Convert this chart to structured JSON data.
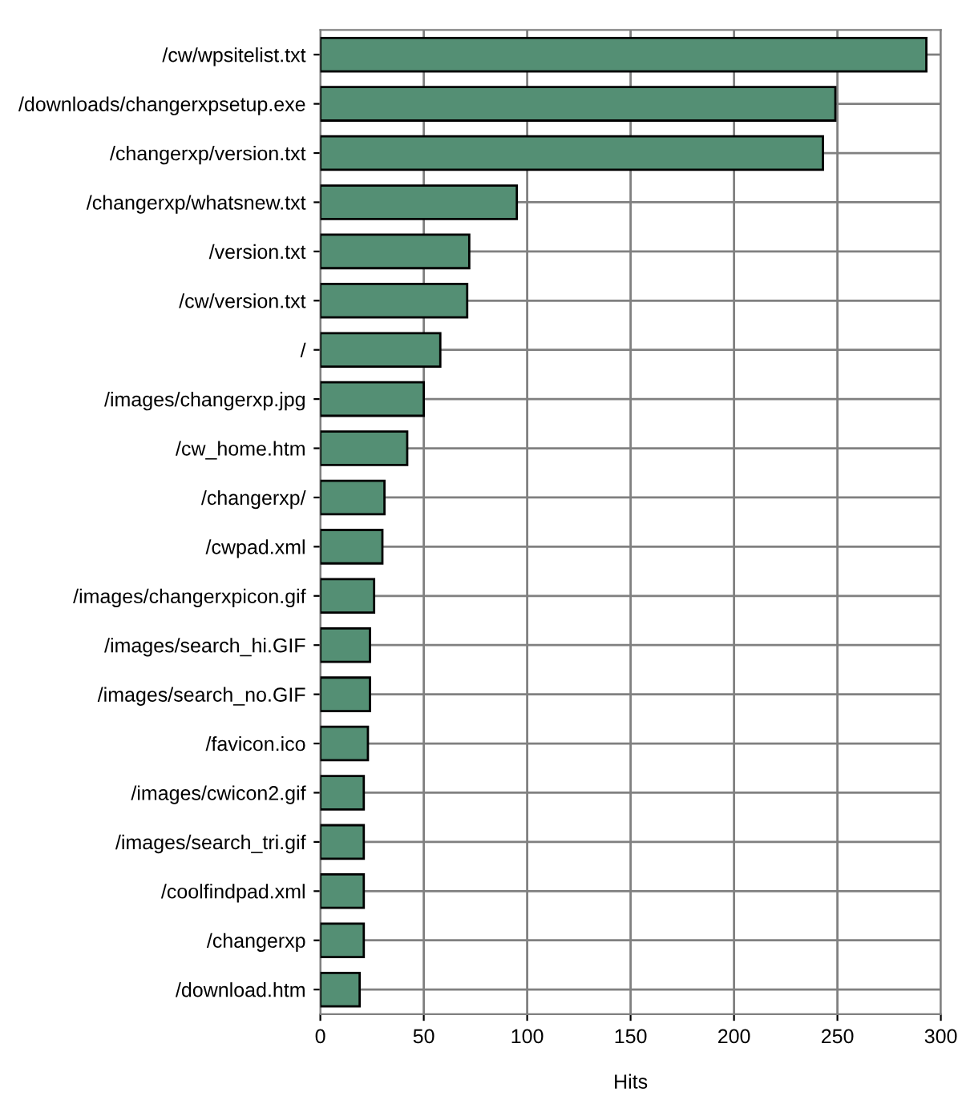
{
  "chart_data": {
    "type": "bar",
    "orientation": "horizontal",
    "xlabel": "Hits",
    "categories": [
      "/cw/wpsitelist.txt",
      "/downloads/changerxpsetup.exe",
      "/changerxp/version.txt",
      "/changerxp/whatsnew.txt",
      "/version.txt",
      "/cw/version.txt",
      "/",
      "/images/changerxp.jpg",
      "/cw_home.htm",
      "/changerxp/",
      "/cwpad.xml",
      "/images/changerxpicon.gif",
      "/images/search_hi.GIF",
      "/images/search_no.GIF",
      "/favicon.ico",
      "/images/cwicon2.gif",
      "/images/search_tri.gif",
      "/coolfindpad.xml",
      "/changerxp",
      "/download.htm"
    ],
    "values": [
      293,
      249,
      243,
      95,
      72,
      71,
      58,
      50,
      42,
      31,
      30,
      26,
      24,
      24,
      23,
      21,
      21,
      21,
      21,
      19
    ],
    "color": "#548f74",
    "xlim": [
      0,
      300
    ],
    "xticks": [
      0,
      50,
      100,
      150,
      200,
      250,
      300
    ],
    "grid": true
  }
}
